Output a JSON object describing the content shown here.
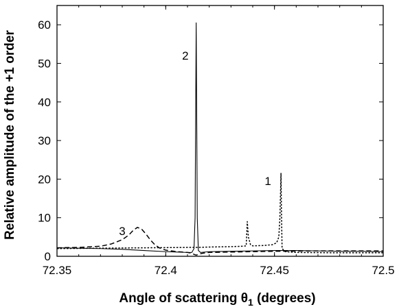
{
  "chart_data": {
    "type": "line",
    "xlabel": "Angle of scattering θ",
    "xlabel_sub": "1",
    "xlabel_suffix": " (degrees)",
    "ylabel": "Relative amplitude of the +1 order",
    "xlim": [
      72.35,
      72.5
    ],
    "ylim": [
      0,
      65
    ],
    "xticks": [
      72.35,
      72.4,
      72.45,
      72.5
    ],
    "xtick_labels": [
      "72.35",
      "72.4",
      "72.45",
      "72.5"
    ],
    "yticks": [
      0,
      10,
      20,
      30,
      40,
      50,
      60
    ],
    "ytick_labels": [
      "0",
      "10",
      "20",
      "30",
      "40",
      "50",
      "60"
    ],
    "grid": false,
    "series": [
      {
        "name": "1",
        "style": "dotted",
        "label_at": [
          72.447,
          18.5
        ],
        "points": [
          [
            72.35,
            2.0
          ],
          [
            72.36,
            2.05
          ],
          [
            72.37,
            2.1
          ],
          [
            72.38,
            2.15
          ],
          [
            72.39,
            2.2
          ],
          [
            72.4,
            2.25
          ],
          [
            72.41,
            2.3
          ],
          [
            72.415,
            2.3
          ],
          [
            72.42,
            2.4
          ],
          [
            72.43,
            2.5
          ],
          [
            72.435,
            2.6
          ],
          [
            72.437,
            2.7
          ],
          [
            72.4375,
            9.0
          ],
          [
            72.438,
            5.0
          ],
          [
            72.439,
            3.0
          ],
          [
            72.44,
            2.7
          ],
          [
            72.445,
            2.8
          ],
          [
            72.449,
            3.0
          ],
          [
            72.451,
            3.5
          ],
          [
            72.452,
            5.0
          ],
          [
            72.4525,
            10.0
          ],
          [
            72.453,
            21.5
          ],
          [
            72.4532,
            12.0
          ],
          [
            72.4535,
            2.0
          ],
          [
            72.455,
            1.2
          ],
          [
            72.46,
            1.0
          ],
          [
            72.47,
            0.95
          ],
          [
            72.48,
            0.9
          ],
          [
            72.49,
            0.9
          ],
          [
            72.5,
            0.9
          ]
        ]
      },
      {
        "name": "2",
        "style": "solid",
        "label_at": [
          72.409,
          51.0
        ],
        "points": [
          [
            72.35,
            2.2
          ],
          [
            72.36,
            2.1
          ],
          [
            72.37,
            2.0
          ],
          [
            72.38,
            1.8
          ],
          [
            72.39,
            1.5
          ],
          [
            72.4,
            1.2
          ],
          [
            72.41,
            1.0
          ],
          [
            72.412,
            1.0
          ],
          [
            72.413,
            2.0
          ],
          [
            72.4135,
            10.0
          ],
          [
            72.414,
            60.5
          ],
          [
            72.4145,
            10.0
          ],
          [
            72.415,
            1.5
          ],
          [
            72.416,
            1.0
          ],
          [
            72.42,
            1.2
          ],
          [
            72.43,
            1.3
          ],
          [
            72.44,
            1.4
          ],
          [
            72.45,
            1.5
          ],
          [
            72.46,
            1.5
          ],
          [
            72.47,
            1.4
          ],
          [
            72.48,
            1.3
          ],
          [
            72.49,
            1.3
          ],
          [
            72.5,
            1.2
          ]
        ]
      },
      {
        "name": "3",
        "style": "dashed",
        "label_at": [
          72.38,
          5.5
        ],
        "points": [
          [
            72.35,
            2.2
          ],
          [
            72.36,
            2.3
          ],
          [
            72.37,
            2.6
          ],
          [
            72.375,
            3.2
          ],
          [
            72.38,
            4.3
          ],
          [
            72.383,
            5.5
          ],
          [
            72.385,
            6.7
          ],
          [
            72.387,
            7.5
          ],
          [
            72.389,
            7.0
          ],
          [
            72.391,
            5.7
          ],
          [
            72.393,
            4.2
          ],
          [
            72.395,
            3.0
          ],
          [
            72.397,
            2.2
          ],
          [
            72.4,
            1.6
          ],
          [
            72.405,
            1.2
          ],
          [
            72.41,
            1.0
          ],
          [
            72.412,
            0.8
          ],
          [
            72.413,
            0.5
          ],
          [
            72.414,
            0.3
          ],
          [
            72.415,
            0.5
          ],
          [
            72.417,
            0.8
          ],
          [
            72.42,
            1.0
          ],
          [
            72.43,
            1.1
          ],
          [
            72.44,
            1.2
          ],
          [
            72.45,
            1.3
          ],
          [
            72.46,
            1.35
          ],
          [
            72.47,
            1.4
          ],
          [
            72.48,
            1.4
          ],
          [
            72.49,
            1.4
          ],
          [
            72.5,
            1.4
          ]
        ]
      }
    ]
  }
}
